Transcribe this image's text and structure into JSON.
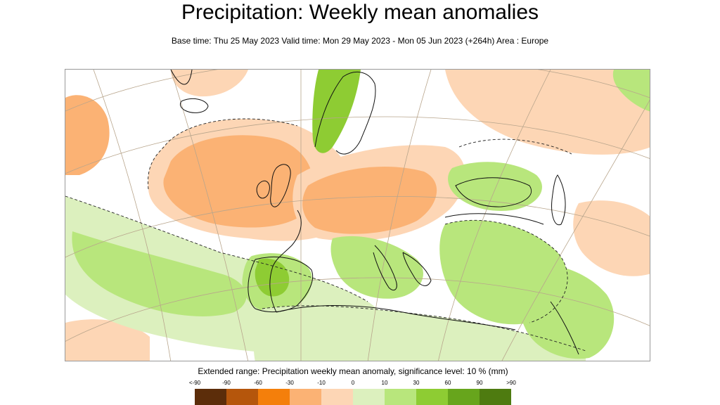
{
  "title": "Precipitation: Weekly mean anomalies",
  "subtitle": "Base time: Thu 25 May 2023 Valid time: Mon 29 May 2023 - Mon 05 Jun 2023 (+264h) Area : Europe",
  "map": {
    "area": "Europe",
    "layer": "Precipitation weekly mean anomaly"
  },
  "legend": {
    "caption": "Extended range: Precipitation weekly mean anomaly, significance level: 10 % (mm)",
    "ticks": [
      "<-90",
      "-90",
      "-60",
      "-30",
      "-10",
      "0",
      "10",
      "30",
      "60",
      "90",
      ">90"
    ],
    "colors": [
      "#5c2d0a",
      "#b5560c",
      "#f47f0b",
      "#fbb274",
      "#fdd6b5",
      "#dcf0be",
      "#b8e67c",
      "#8ecc33",
      "#67a51c",
      "#4e7b10"
    ]
  }
}
